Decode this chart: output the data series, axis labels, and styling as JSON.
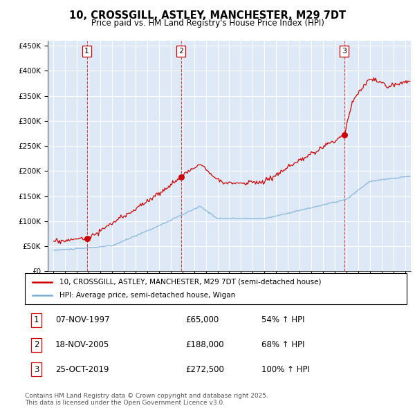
{
  "title": "10, CROSSGILL, ASTLEY, MANCHESTER, M29 7DT",
  "subtitle": "Price paid vs. HM Land Registry's House Price Index (HPI)",
  "sale_label": "10, CROSSGILL, ASTLEY, MANCHESTER, M29 7DT (semi-detached house)",
  "hpi_label": "HPI: Average price, semi-detached house, Wigan",
  "footnote": "Contains HM Land Registry data © Crown copyright and database right 2025.\nThis data is licensed under the Open Government Licence v3.0.",
  "sales": [
    {
      "num": 1,
      "date": "07-NOV-1997",
      "price": 65000,
      "pct": "54%",
      "year": 1997.85
    },
    {
      "num": 2,
      "date": "18-NOV-2005",
      "price": 188000,
      "pct": "68%",
      "year": 2005.88
    },
    {
      "num": 3,
      "date": "25-OCT-2019",
      "price": 272500,
      "pct": "100%",
      "year": 2019.81
    }
  ],
  "ylim": [
    0,
    460000
  ],
  "yticks": [
    0,
    50000,
    100000,
    150000,
    200000,
    250000,
    300000,
    350000,
    400000,
    450000
  ],
  "xlim": [
    1994.5,
    2025.5
  ],
  "background_color": "#dde9f7",
  "grid_color": "#ffffff",
  "sale_line_color": "#cc0000",
  "hpi_line_color": "#7aadd4",
  "vline_color": "#cc0000",
  "marker_color": "#cc0000"
}
